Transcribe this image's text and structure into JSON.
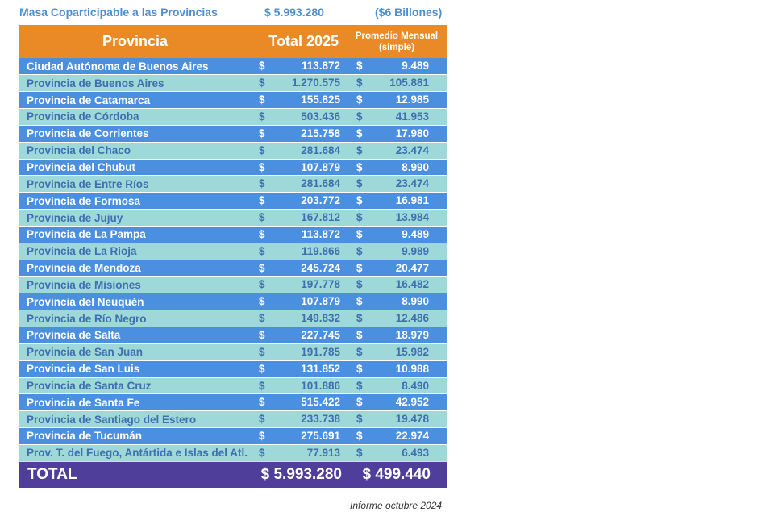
{
  "header": {
    "label": "Masa Coparticipable a las Provincias",
    "value": "$ 5.993.280",
    "note": "($6 Billones)"
  },
  "table": {
    "col_provincia": "Provincia",
    "col_total": "Total 2025",
    "col_promedio": "Promedio Mensual (simple)",
    "currency": "$",
    "rows": [
      {
        "name": "Ciudad Autónoma de Buenos Aires",
        "total": "113.872",
        "promedio": "9.489"
      },
      {
        "name": "Provincia de Buenos Aires",
        "total": "1.270.575",
        "promedio": "105.881"
      },
      {
        "name": "Provincia de Catamarca",
        "total": "155.825",
        "promedio": "12.985"
      },
      {
        "name": "Provincia de Córdoba",
        "total": "503.436",
        "promedio": "41.953"
      },
      {
        "name": "Provincia de Corrientes",
        "total": "215.758",
        "promedio": "17.980"
      },
      {
        "name": "Provincia del Chaco",
        "total": "281.684",
        "promedio": "23.474"
      },
      {
        "name": "Provincia del Chubut",
        "total": "107.879",
        "promedio": "8.990"
      },
      {
        "name": "Provincia de Entre Ríos",
        "total": "281.684",
        "promedio": "23.474"
      },
      {
        "name": "Provincia de Formosa",
        "total": "203.772",
        "promedio": "16.981"
      },
      {
        "name": "Provincia de Jujuy",
        "total": "167.812",
        "promedio": "13.984"
      },
      {
        "name": "Provincia de La Pampa",
        "total": "113.872",
        "promedio": "9.489"
      },
      {
        "name": "Provincia de La Rioja",
        "total": "119.866",
        "promedio": "9.989"
      },
      {
        "name": "Provincia de Mendoza",
        "total": "245.724",
        "promedio": "20.477"
      },
      {
        "name": "Provincia de Misiones",
        "total": "197.778",
        "promedio": "16.482"
      },
      {
        "name": "Provincia del Neuquén",
        "total": "107.879",
        "promedio": "8.990"
      },
      {
        "name": "Provincia de Río Negro",
        "total": "149.832",
        "promedio": "12.486"
      },
      {
        "name": "Provincia de Salta",
        "total": "227.745",
        "promedio": "18.979"
      },
      {
        "name": "Provincia de San Juan",
        "total": "191.785",
        "promedio": "15.982"
      },
      {
        "name": "Provincia de San Luis",
        "total": "131.852",
        "promedio": "10.988"
      },
      {
        "name": "Provincia de Santa Cruz",
        "total": "101.886",
        "promedio": "8.490"
      },
      {
        "name": "Provincia de Santa Fe",
        "total": "515.422",
        "promedio": "42.952"
      },
      {
        "name": "Provincia de Santiago del Estero",
        "total": "233.738",
        "promedio": "19.478"
      },
      {
        "name": "Provincia de Tucumán",
        "total": "275.691",
        "promedio": "22.974"
      },
      {
        "name": "Prov. T. del Fuego, Antártida e Islas del Atl. Sur",
        "total": "77.913",
        "promedio": "6.493"
      }
    ],
    "total_label": "TOTAL",
    "total_value": "$ 5.993.280",
    "total_promedio": "$ 499.440"
  },
  "footer": {
    "source": "Informe octubre 2024"
  },
  "colors": {
    "header_orange": "#ea8a26",
    "row_blue": "#4a8fe0",
    "row_teal": "#9fd8d8",
    "total_purple": "#4f3f9a",
    "title_blue": "#4d8fd1"
  }
}
